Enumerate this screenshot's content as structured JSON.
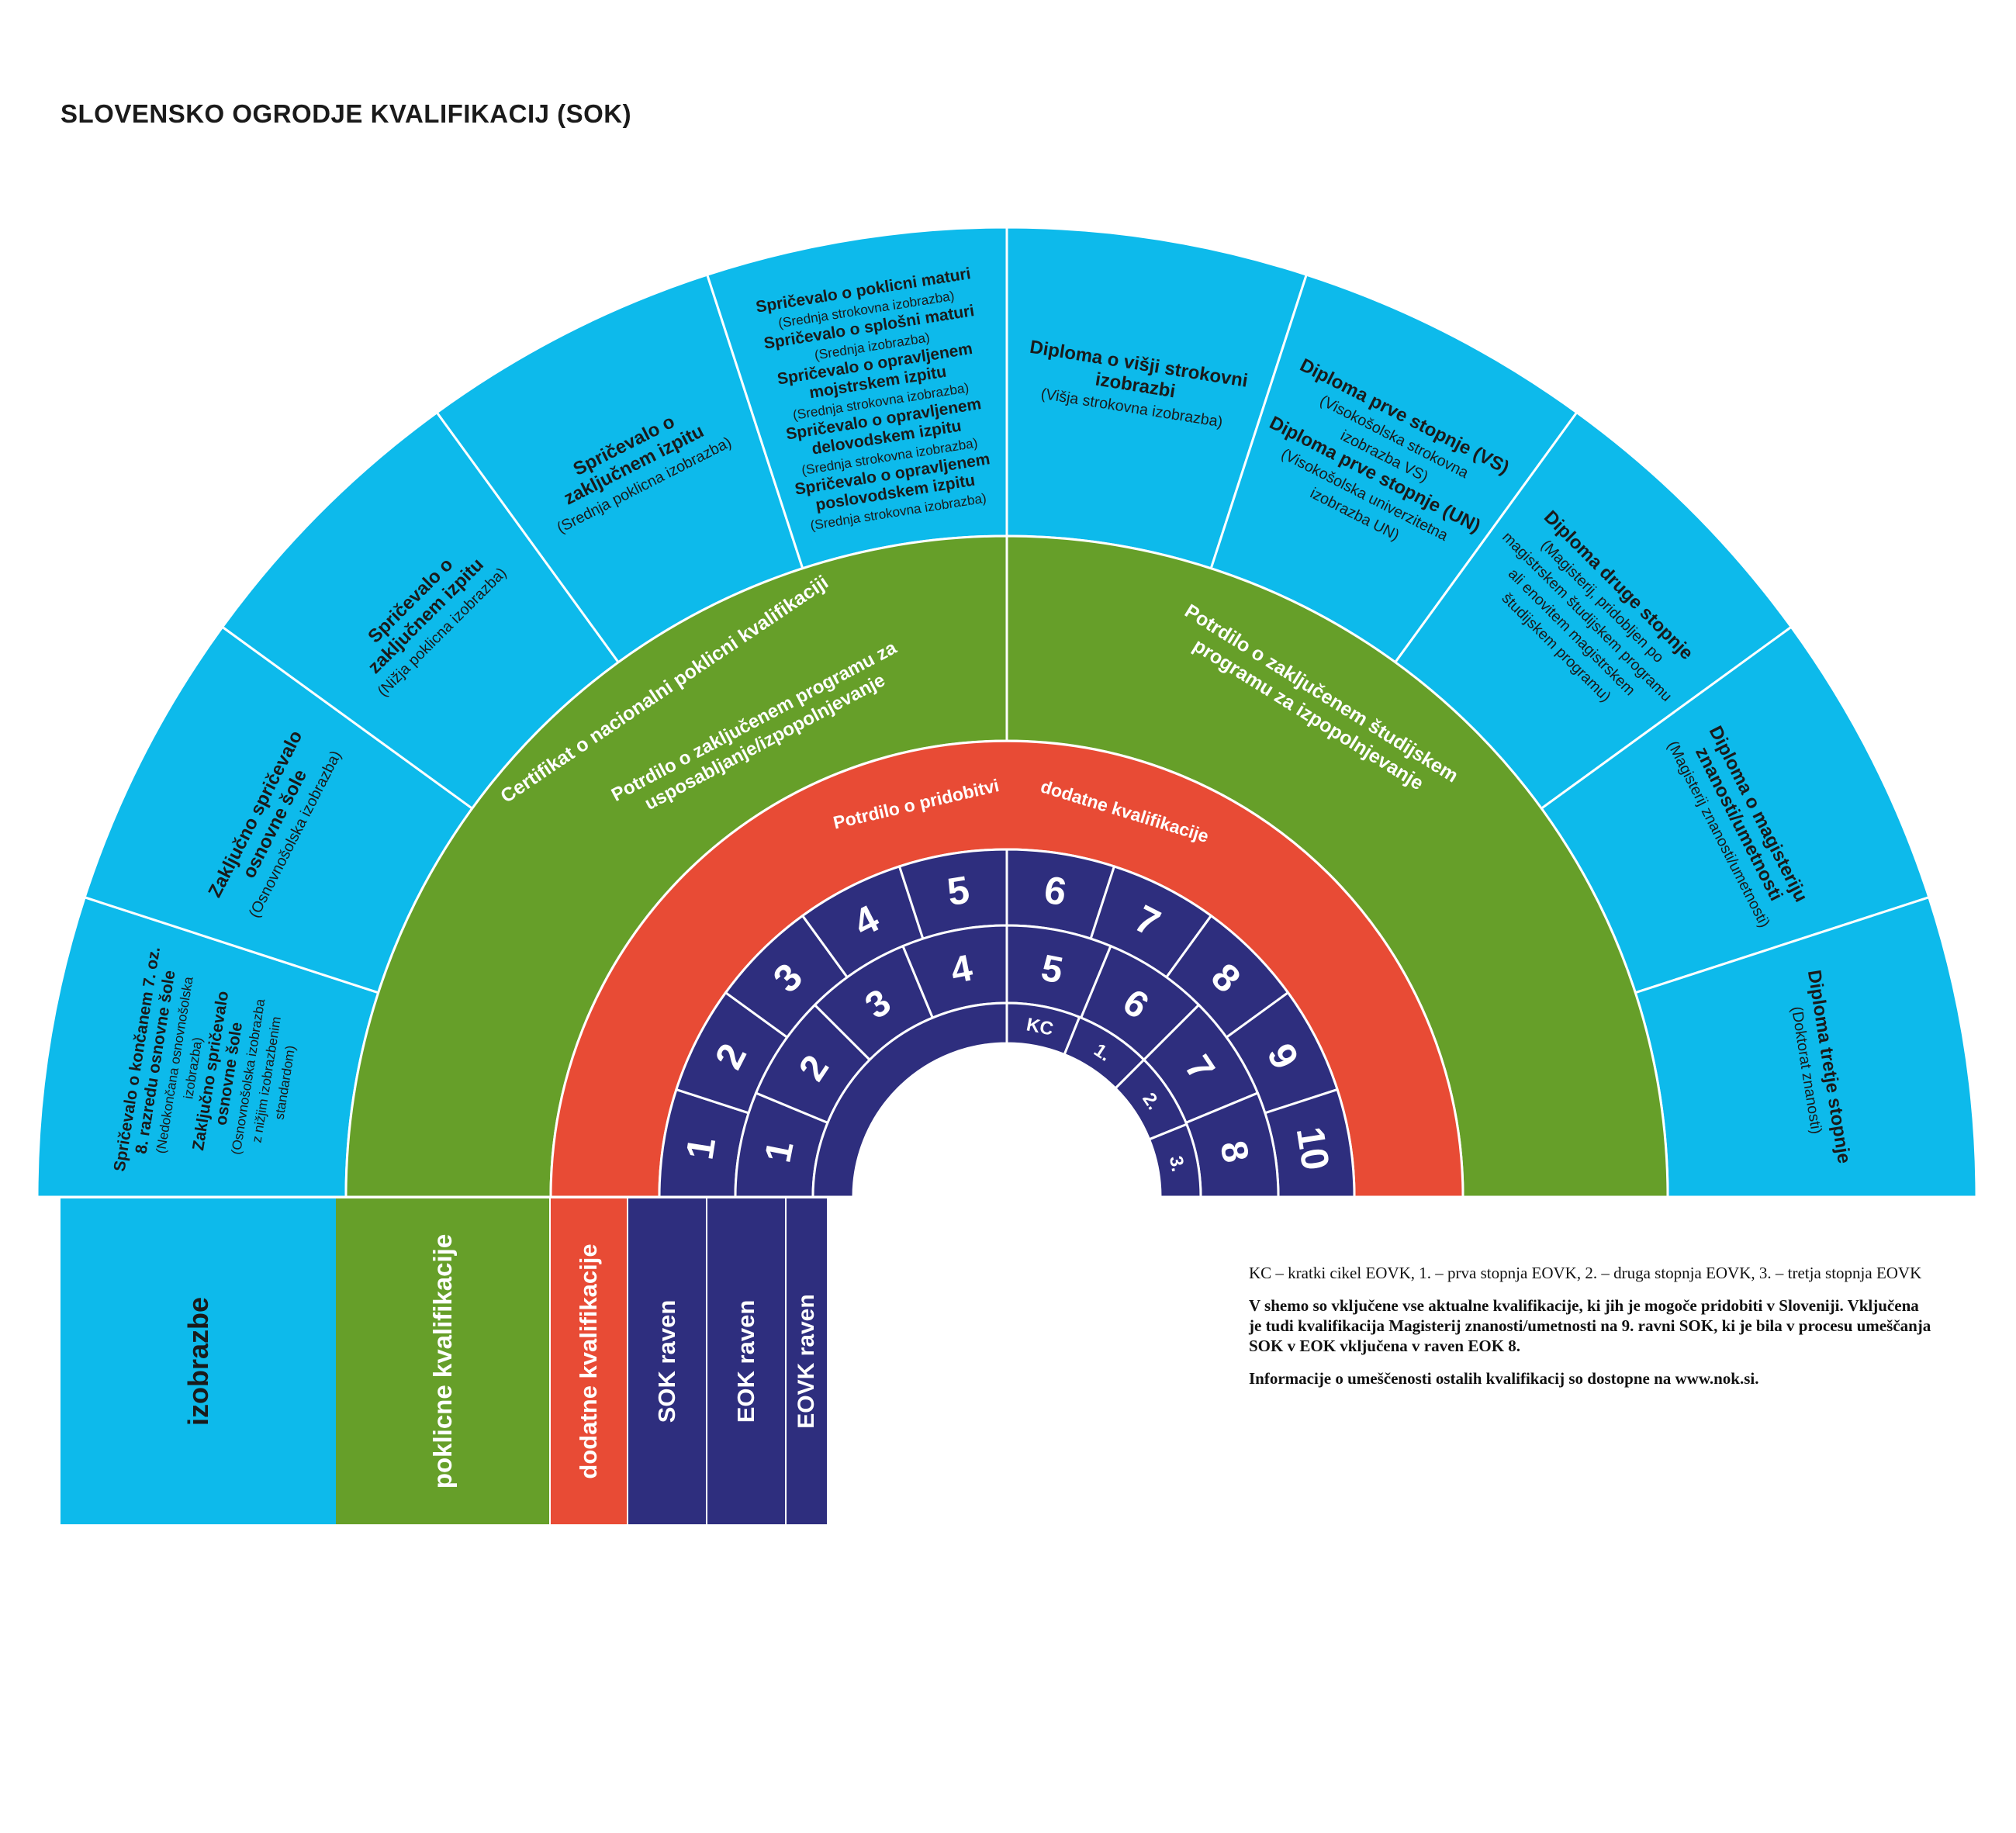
{
  "title": "SLOVENSKO OGRODJE KVALIFIKACIJ (SOK)",
  "colors": {
    "izobrazbe": "#0dbaeb",
    "poklicne": "#669f29",
    "dodatne": "#e84b35",
    "ravni": "#2e2e7e",
    "line": "#ffffff"
  },
  "legend": [
    {
      "key": "izobrazbe",
      "label": "izobrazbe"
    },
    {
      "key": "poklicne",
      "label": "poklicne kvalifikacije"
    },
    {
      "key": "dodatne",
      "label": "dodatne kvalifikacije"
    },
    {
      "key": "sok",
      "label": "SOK raven"
    },
    {
      "key": "eok",
      "label": "EOK raven"
    },
    {
      "key": "eovk",
      "label": "EOVK raven"
    }
  ],
  "izobrazbe": [
    {
      "lines": [
        {
          "t": "Spričevalo o končanem 7. oz.",
          "b": true
        },
        {
          "t": "8. razredu osnovne šole",
          "b": true
        },
        {
          "t": "(Nedokončana osnovnošolska",
          "b": false
        },
        {
          "t": "izobrazba)",
          "b": false
        },
        {
          "t": "Zaključno spričevalo",
          "b": true
        },
        {
          "t": "osnovne šole",
          "b": true
        },
        {
          "t": "(Osnovnošolska izobrazba",
          "b": false
        },
        {
          "t": "z nižjim izobrazbenim",
          "b": false
        },
        {
          "t": "standardom)",
          "b": false
        }
      ]
    },
    {
      "lines": [
        {
          "t": "Zaključno spričevalo",
          "b": true
        },
        {
          "t": "osnovne šole",
          "b": true
        },
        {
          "t": "(Osnovnošolska izobrazba)",
          "b": false
        }
      ]
    },
    {
      "lines": [
        {
          "t": "Spričevalo o",
          "b": true
        },
        {
          "t": "zaključnem izpitu",
          "b": true
        },
        {
          "t": "(Nižja poklicna izobrazba)",
          "b": false
        }
      ]
    },
    {
      "lines": [
        {
          "t": "Spričevalo o",
          "b": true
        },
        {
          "t": "zaključnem izpitu",
          "b": true
        },
        {
          "t": "(Srednja poklicna izobrazba)",
          "b": false
        }
      ]
    },
    {
      "lines": [
        {
          "t": "Spričevalo o poklicni maturi",
          "b": true
        },
        {
          "t": "(Srednja strokovna izobrazba)",
          "b": false
        },
        {
          "t": "Spričevalo o splošni maturi",
          "b": true
        },
        {
          "t": "(Srednja izobrazba)",
          "b": false
        },
        {
          "t": "Spričevalo o opravljenem",
          "b": true
        },
        {
          "t": "mojstrskem izpitu",
          "b": true
        },
        {
          "t": "(Srednja strokovna izobrazba)",
          "b": false
        },
        {
          "t": "Spričevalo o opravljenem",
          "b": true
        },
        {
          "t": "delovodskem izpitu",
          "b": true
        },
        {
          "t": "(Srednja strokovna izobrazba)",
          "b": false
        },
        {
          "t": "Spričevalo o opravljenem",
          "b": true
        },
        {
          "t": "poslovodskem izpitu",
          "b": true
        },
        {
          "t": "(Srednja strokovna izobrazba)",
          "b": false
        }
      ]
    },
    {
      "lines": [
        {
          "t": "Diploma o višji strokovni",
          "b": true
        },
        {
          "t": "izobrazbi",
          "b": true
        },
        {
          "t": "(Višja strokovna izobrazba)",
          "b": false
        }
      ]
    },
    {
      "lines": [
        {
          "t": "Diploma prve stopnje (VS)",
          "b": true
        },
        {
          "t": "(Visokošolska strokovna",
          "b": false
        },
        {
          "t": "izobrazba VS)",
          "b": false
        },
        {
          "t": "Diploma prve stopnje (UN)",
          "b": true
        },
        {
          "t": "(Visokošolska univerzitetna",
          "b": false
        },
        {
          "t": "izobrazba UN)",
          "b": false
        }
      ]
    },
    {
      "lines": [
        {
          "t": "Diploma druge stopnje",
          "b": true
        },
        {
          "t": "(Magisterij, pridobljen po",
          "b": false
        },
        {
          "t": "magistrskem študijskem programu",
          "b": false
        },
        {
          "t": "ali enovitem magistrskem",
          "b": false
        },
        {
          "t": "študijskem programu)",
          "b": false
        }
      ]
    },
    {
      "lines": [
        {
          "t": "Diploma o magisteriju",
          "b": true
        },
        {
          "t": "znanosti/umetnosti",
          "b": true
        },
        {
          "t": "(Magisterij znanosti/umetnosti)",
          "b": false
        }
      ]
    },
    {
      "lines": [
        {
          "t": "Diploma tretje stopnje",
          "b": true
        },
        {
          "t": "(Doktorat znanosti)",
          "b": false
        }
      ]
    }
  ],
  "poklicne": {
    "outer": "Certifikat o nacionalni poklicni kvalifikaciji",
    "inner_left_1": "Potrdilo o zaključenem programu za",
    "inner_left_2": "usposabljanje/izpopolnjevanje",
    "right_1": "Potrdilo o zaključenem študijskem",
    "right_2": "programu za izpopolnjevanje"
  },
  "dodatne": {
    "label_1": "Potrdilo o pridobitvi",
    "label_2": "dodatne kvalifikacije"
  },
  "sok_levels": [
    "1",
    "2",
    "3",
    "4",
    "5",
    "6",
    "7",
    "8",
    "9",
    "10"
  ],
  "eok_levels": [
    "1",
    "2",
    "3",
    "4",
    "5",
    "6",
    "7",
    "8"
  ],
  "eovk_levels": [
    "KC",
    "1.",
    "2.",
    "3."
  ],
  "notes": [
    {
      "text": "KC – kratki cikel EOVK, 1. – prva stopnja EOVK, 2. – druga stopnja EOVK, 3. – tretja stopnja EOVK",
      "bold": false
    },
    {
      "text": "V shemo so vključene vse aktualne kvalifikacije, ki jih je mogoče pridobiti v Sloveniji. Vključena je tudi kvalifikacija Magisterij znanosti/umetnosti na 9. ravni SOK, ki je bila v procesu umeščanja SOK v EOK vključena v raven EOK 8.",
      "bold": true
    },
    {
      "text": "Informacije o umeščenosti ostalih kvalifikacij so dostopne na www.nok.si.",
      "bold": true
    }
  ]
}
